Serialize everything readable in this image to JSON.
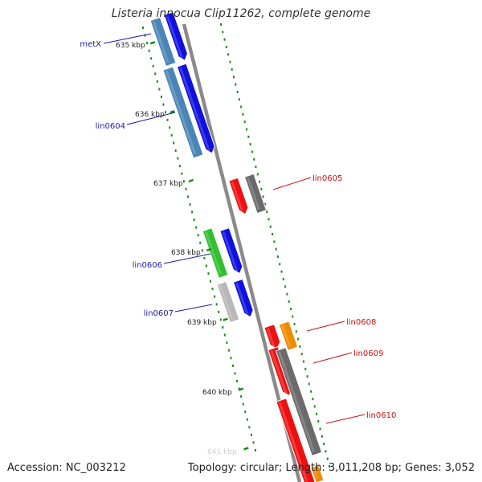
{
  "title": "Listeria innocua Clip11262, complete genome",
  "footer": {
    "accession": "Accession: NC_003212",
    "summary": "Topology: circular; Length: 3,011,208 bp; Genes: 3,052"
  },
  "colors": {
    "backbone": "#8a8a8a",
    "tick": "#1a8a1a",
    "label_forward": "#1a1aaa",
    "label_reverse": "#cc1111",
    "blue_cds": "#1010e0",
    "steel_gene": "#4a85b5",
    "red_cds": "#ee1010",
    "gray_gene": "#6a6a6a",
    "green_gene": "#30c030",
    "lightgray_gene": "#b8b8b8",
    "orange_gene": "#f08a00"
  },
  "ticks": [
    "635 kbp",
    "636 kbp",
    "637 kbp",
    "638 kbp",
    "639 kbp",
    "640 kbp",
    "641 kbp"
  ],
  "labels": {
    "metX": "metX",
    "lin0604": "lin0604",
    "lin0605": "lin0605",
    "lin0606": "lin0606",
    "lin0607": "lin0607",
    "lin0608": "lin0608",
    "lin0609": "lin0609",
    "lin0610": "lin0610"
  }
}
